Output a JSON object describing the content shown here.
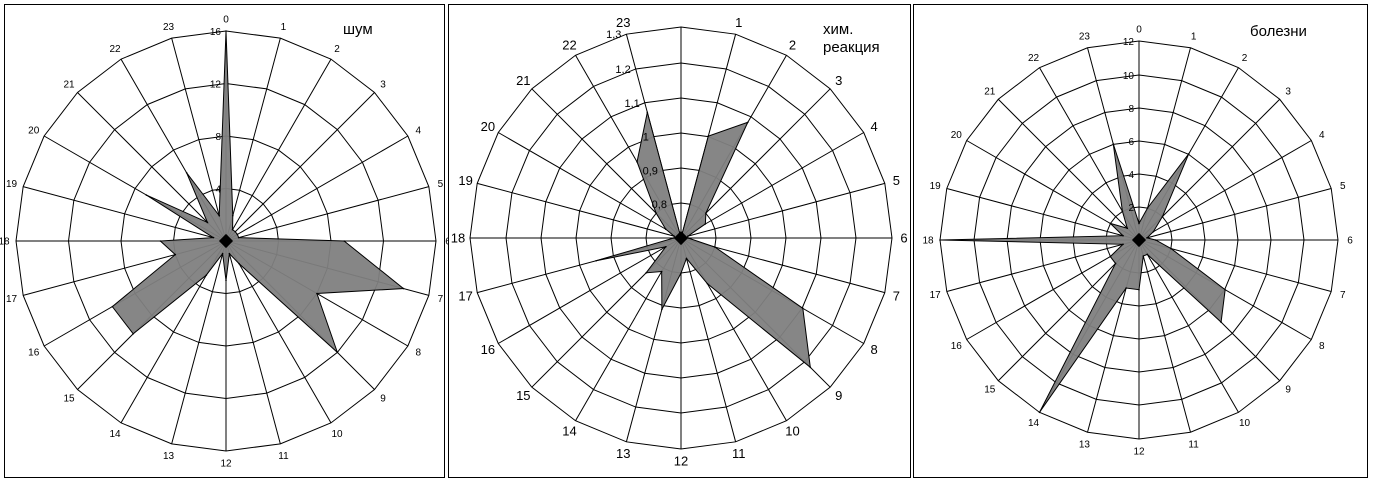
{
  "chart_data": [
    {
      "type": "radar",
      "title": "шум",
      "categories": [
        "0",
        "1",
        "2",
        "3",
        "4",
        "5",
        "6",
        "7",
        "8",
        "9",
        "10",
        "11",
        "12",
        "13",
        "14",
        "15",
        "16",
        "17",
        "18",
        "19",
        "20",
        "21",
        "22",
        "23"
      ],
      "radial_ticks": [
        "4",
        "8",
        "12",
        "16"
      ],
      "rlim": [
        0,
        16
      ],
      "values": [
        16,
        2,
        1,
        1,
        1,
        1,
        9,
        14,
        8,
        12,
        2,
        1,
        3,
        1,
        3,
        10,
        10,
        4,
        5,
        1,
        7,
        2,
        6,
        2
      ],
      "fill": "#808080"
    },
    {
      "type": "radar",
      "title": "хим.\nреакция",
      "categories": [
        "1",
        "2",
        "3",
        "4",
        "5",
        "6",
        "7",
        "8",
        "9",
        "10",
        "11",
        "12",
        "13",
        "14",
        "15",
        "16",
        "17",
        "18",
        "19",
        "20",
        "21",
        "22",
        "23"
      ],
      "radial_ticks": [
        "0,8",
        "0,9",
        "1",
        "1,1",
        "1,2",
        "1,3"
      ],
      "rlim": [
        0.7,
        1.3
      ],
      "values": [
        1.0,
        1.08,
        0.8,
        0.78,
        0.72,
        0.72,
        0.8,
        1.1,
        1.22,
        0.85,
        0.76,
        0.8,
        0.91,
        0.81,
        0.84,
        0.75,
        0.95,
        0.72,
        0.72,
        0.75,
        0.8,
        0.95,
        1.07
      ],
      "fill": "#808080"
    },
    {
      "type": "radar",
      "title": "болезни",
      "categories": [
        "0",
        "1",
        "2",
        "3",
        "4",
        "5",
        "6",
        "7",
        "8",
        "9",
        "10",
        "11",
        "12",
        "13",
        "14",
        "15",
        "16",
        "17",
        "18",
        "19",
        "20",
        "21",
        "22",
        "23"
      ],
      "radial_ticks": [
        "2",
        "4",
        "6",
        "8",
        "10",
        "12"
      ],
      "rlim": [
        0,
        12
      ],
      "values": [
        1,
        2,
        6,
        2,
        1,
        0.5,
        1,
        2,
        6,
        7,
        1,
        1,
        3,
        3,
        12,
        2,
        2,
        1,
        12,
        1,
        2,
        1,
        2,
        6
      ],
      "fill": "#808080"
    }
  ]
}
